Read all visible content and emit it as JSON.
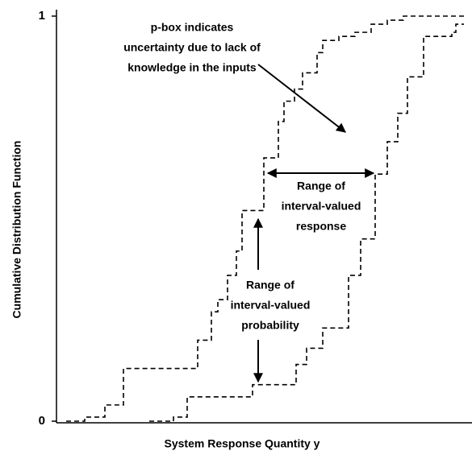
{
  "chart_data": {
    "type": "step",
    "xlabel": "System Response Quantity y",
    "ylabel": "Cumulative Distribution Function",
    "xlim": [
      0,
      515
    ],
    "ylim": [
      0,
      1
    ],
    "yticks": [
      0,
      1
    ],
    "series": [
      {
        "color": "#000000",
        "x": [
          12,
          35,
          60,
          83,
          175,
          192,
          200,
          212,
          223,
          230,
          257,
          275,
          282,
          295,
          305,
          323,
          330,
          350,
          370,
          390,
          410,
          430,
          505
        ],
        "values": [
          0,
          0.01,
          0.04,
          0.13,
          0.2,
          0.27,
          0.3,
          0.36,
          0.42,
          0.52,
          0.65,
          0.74,
          0.79,
          0.82,
          0.86,
          0.91,
          0.94,
          0.95,
          0.96,
          0.98,
          0.99,
          1,
          1
        ]
      },
      {
        "color": "#000000",
        "x": [
          115,
          145,
          162,
          243,
          297,
          310,
          330,
          362,
          377,
          395,
          410,
          423,
          435,
          455,
          490,
          495,
          505
        ],
        "values": [
          0,
          0.01,
          0.06,
          0.09,
          0.14,
          0.18,
          0.23,
          0.36,
          0.45,
          0.61,
          0.69,
          0.76,
          0.85,
          0.95,
          0.96,
          0.98,
          0.98
        ]
      }
    ],
    "annotations": [
      {
        "lines": [
          "p-box indicates",
          "uncertainty due to lack of",
          "knowledge in the inputs"
        ]
      },
      {
        "lines": [
          "Range of",
          "interval-valued",
          "response"
        ]
      },
      {
        "lines": [
          "Range of",
          "interval-valued",
          "probability"
        ]
      }
    ]
  }
}
